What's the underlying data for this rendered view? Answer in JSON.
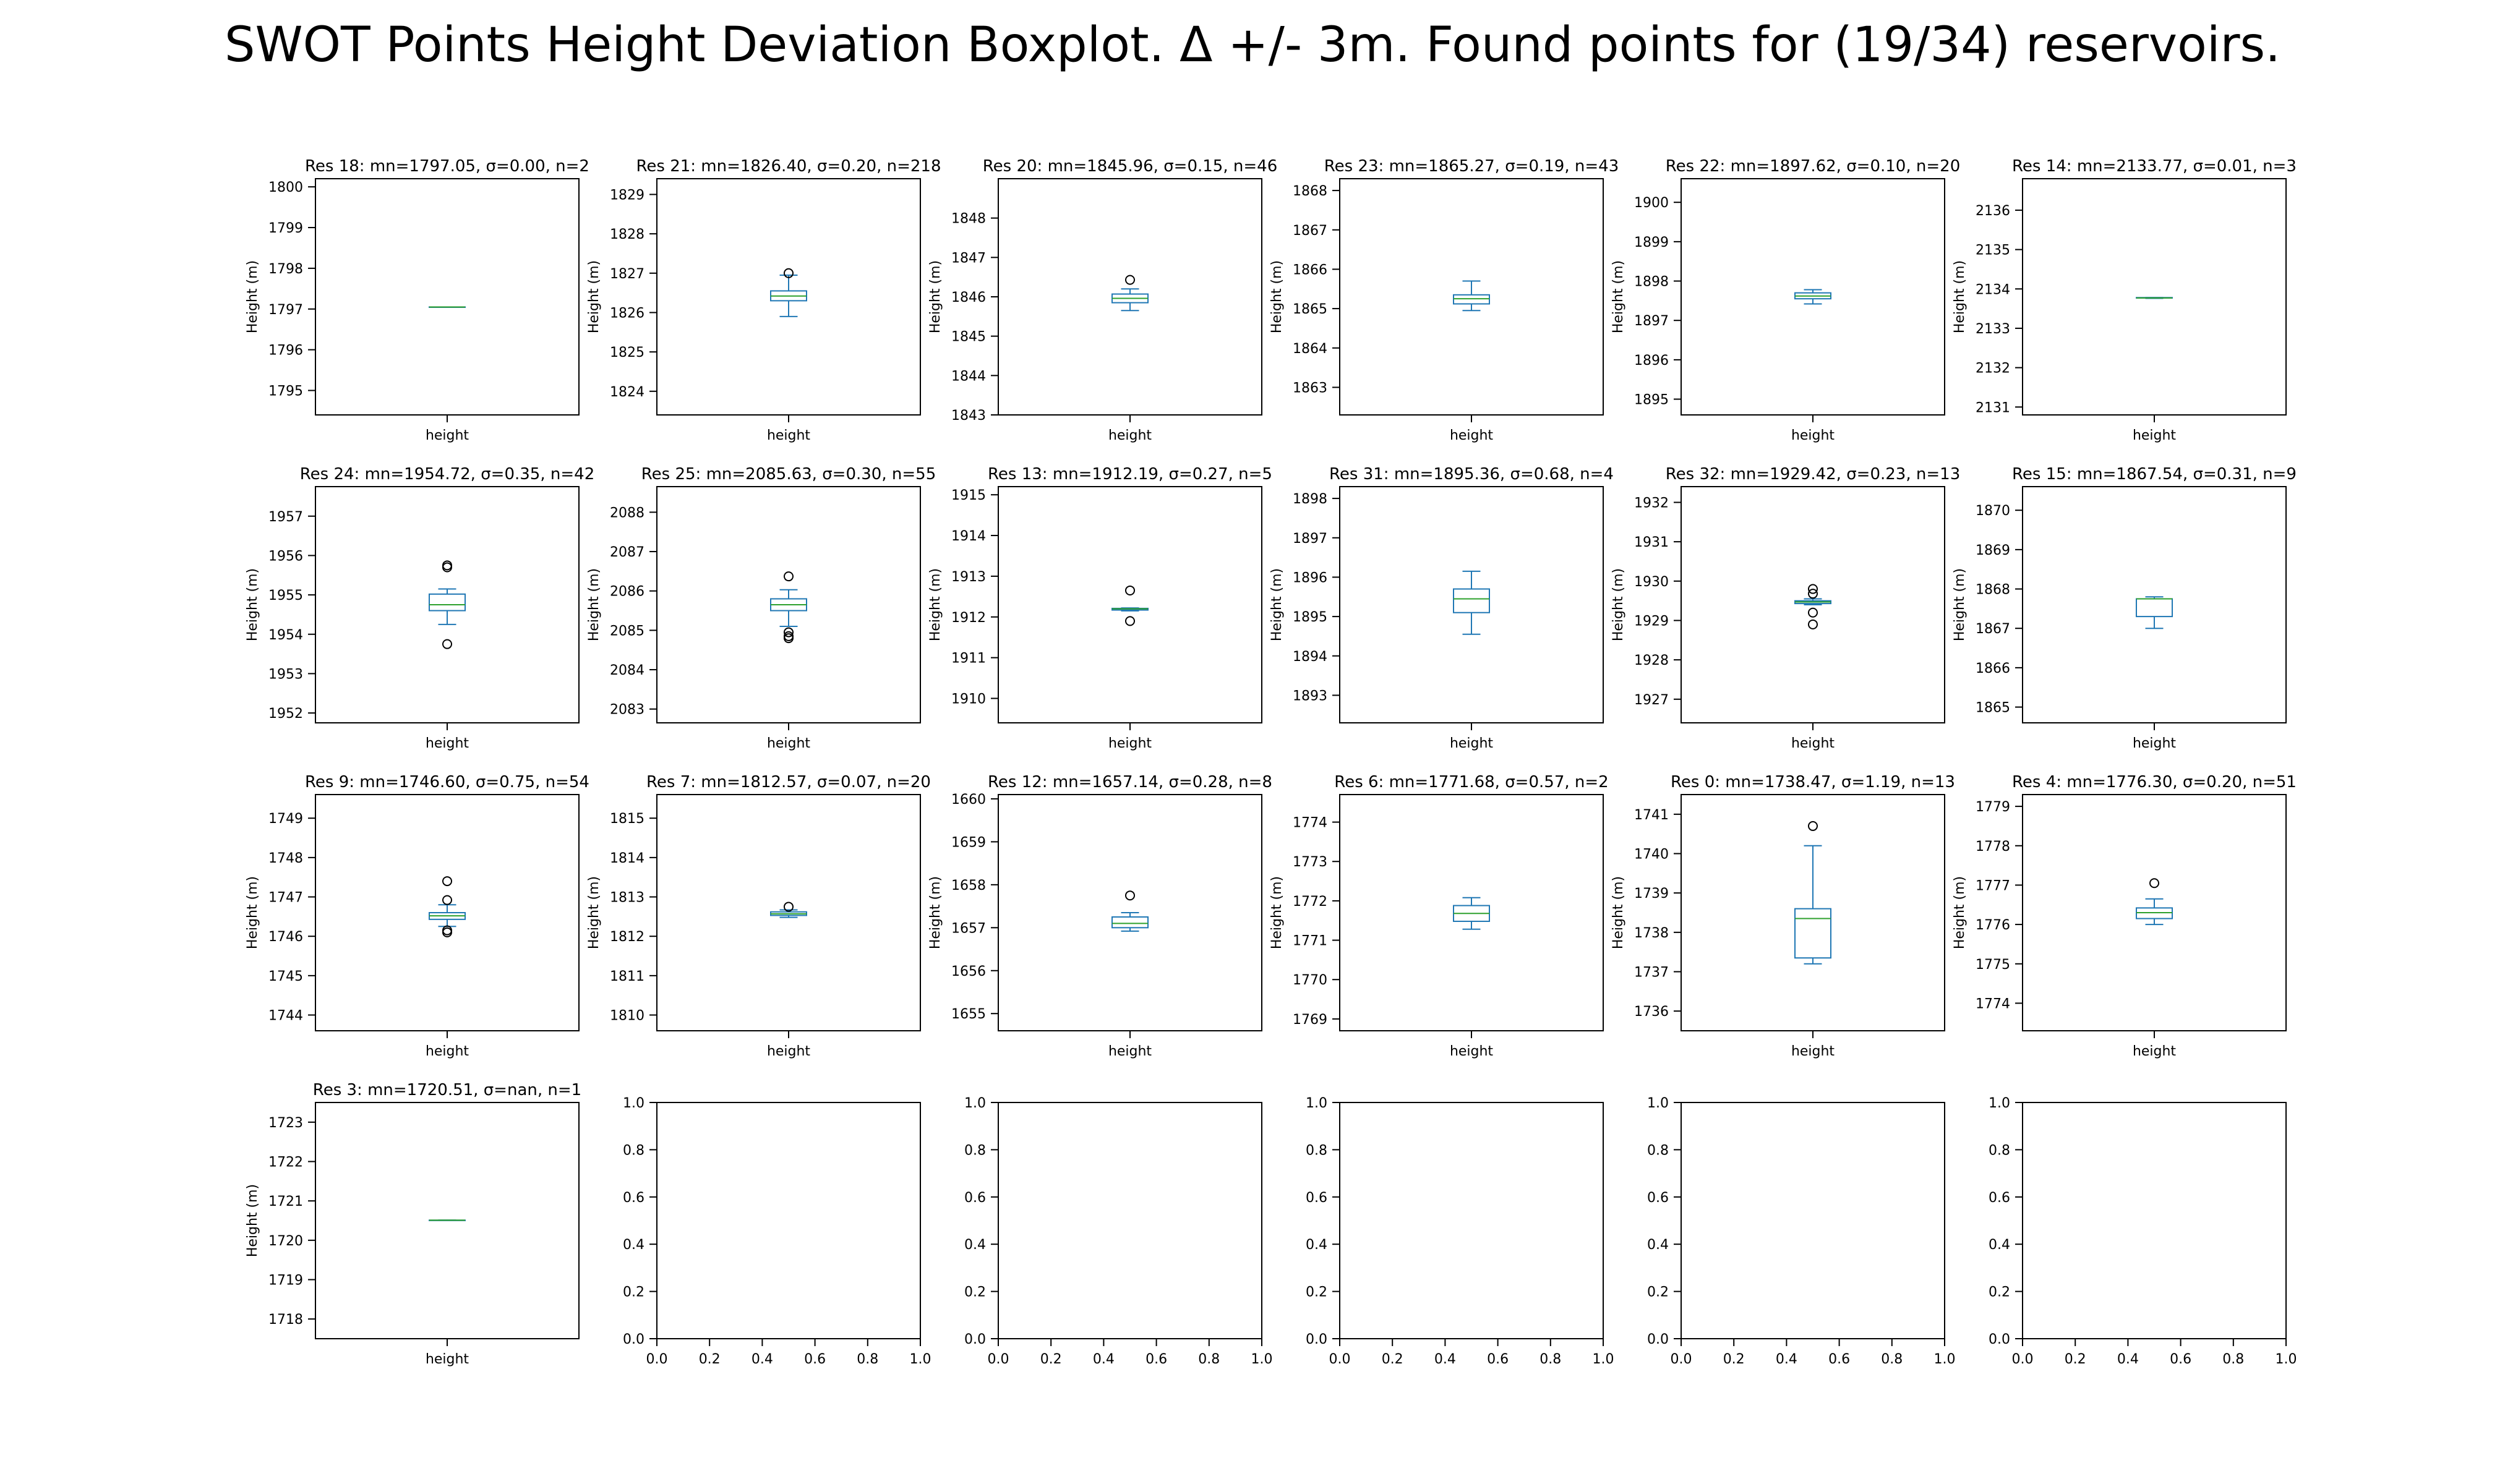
{
  "figure": {
    "title": "SWOT Points Height Deviation Boxplot. Δ +/- 3m. Found points for (19/34) reservoirs."
  },
  "colors": {
    "box": "#1f77b4",
    "median": "#2ca02c",
    "axes": "#000000"
  },
  "chart_data": [
    {
      "type": "box",
      "title": "Res 18: mn=1797.05, σ=0.00, n=2",
      "xlabel": "height",
      "ylabel": "Height (m)",
      "ylim": [
        1794.4,
        1800.2
      ],
      "yticks": [
        1795,
        1796,
        1797,
        1798,
        1799,
        1800
      ],
      "box": {
        "whislo": 1797.05,
        "q1": 1797.05,
        "med": 1797.05,
        "q3": 1797.05,
        "whishi": 1797.05,
        "fliers": []
      }
    },
    {
      "type": "box",
      "title": "Res 21: mn=1826.40, σ=0.20, n=218",
      "xlabel": "height",
      "ylabel": "Height (m)",
      "ylim": [
        1823.4,
        1829.4
      ],
      "yticks": [
        1824,
        1825,
        1826,
        1827,
        1828,
        1829
      ],
      "box": {
        "whislo": 1825.9,
        "q1": 1826.3,
        "med": 1826.42,
        "q3": 1826.55,
        "whishi": 1826.95,
        "fliers": [
          1827.0
        ]
      }
    },
    {
      "type": "box",
      "title": "Res 20: mn=1845.96, σ=0.15, n=46",
      "xlabel": "height",
      "ylabel": "Height (m)",
      "ylim": [
        1843.0,
        1849.0
      ],
      "yticks": [
        1843,
        1844,
        1845,
        1846,
        1847,
        1848
      ],
      "box": {
        "whislo": 1845.65,
        "q1": 1845.85,
        "med": 1845.96,
        "q3": 1846.07,
        "whishi": 1846.2,
        "fliers": [
          1846.43
        ]
      }
    },
    {
      "type": "box",
      "title": "Res 23: mn=1865.27, σ=0.19, n=43",
      "xlabel": "height",
      "ylabel": "Height (m)",
      "ylim": [
        1862.3,
        1868.3
      ],
      "yticks": [
        1863,
        1864,
        1865,
        1866,
        1867,
        1868
      ],
      "box": {
        "whislo": 1864.95,
        "q1": 1865.12,
        "med": 1865.25,
        "q3": 1865.35,
        "whishi": 1865.7,
        "fliers": []
      }
    },
    {
      "type": "box",
      "title": "Res 22: mn=1897.62, σ=0.10, n=20",
      "xlabel": "height",
      "ylabel": "Height (m)",
      "ylim": [
        1894.6,
        1900.6
      ],
      "yticks": [
        1895,
        1896,
        1897,
        1898,
        1899,
        1900
      ],
      "box": {
        "whislo": 1897.42,
        "q1": 1897.55,
        "med": 1897.62,
        "q3": 1897.7,
        "whishi": 1897.78,
        "fliers": []
      }
    },
    {
      "type": "box",
      "title": "Res 14: mn=2133.77, σ=0.01, n=3",
      "xlabel": "height",
      "ylabel": "Height (m)",
      "ylim": [
        2130.8,
        2136.8
      ],
      "yticks": [
        2131,
        2132,
        2133,
        2134,
        2135,
        2136
      ],
      "box": {
        "whislo": 2133.76,
        "q1": 2133.77,
        "med": 2133.77,
        "q3": 2133.78,
        "whishi": 2133.78,
        "fliers": []
      }
    },
    {
      "type": "box",
      "title": "Res 24: mn=1954.72, σ=0.35, n=42",
      "xlabel": "height",
      "ylabel": "Height (m)",
      "ylim": [
        1951.75,
        1957.75
      ],
      "yticks": [
        1952,
        1953,
        1954,
        1955,
        1956,
        1957
      ],
      "box": {
        "whislo": 1954.25,
        "q1": 1954.6,
        "med": 1954.75,
        "q3": 1955.02,
        "whishi": 1955.15,
        "fliers": [
          1955.7,
          1955.75,
          1953.75
        ]
      }
    },
    {
      "type": "box",
      "title": "Res 25: mn=2085.63, σ=0.30, n=55",
      "xlabel": "height",
      "ylabel": "Height (m)",
      "ylim": [
        2082.65,
        2088.65
      ],
      "yticks": [
        2083,
        2084,
        2085,
        2086,
        2087,
        2088
      ],
      "box": {
        "whislo": 2085.1,
        "q1": 2085.5,
        "med": 2085.65,
        "q3": 2085.8,
        "whishi": 2086.03,
        "fliers": [
          2086.37,
          2084.95,
          2084.85,
          2084.8
        ]
      }
    },
    {
      "type": "box",
      "title": "Res 13: mn=1912.19, σ=0.27, n=5",
      "xlabel": "height",
      "ylabel": "Height (m)",
      "ylim": [
        1909.4,
        1915.2
      ],
      "yticks": [
        1910,
        1911,
        1912,
        1913,
        1914,
        1915
      ],
      "box": {
        "whislo": 1912.15,
        "q1": 1912.17,
        "med": 1912.2,
        "q3": 1912.21,
        "whishi": 1912.22,
        "fliers": [
          1912.65,
          1911.9
        ]
      }
    },
    {
      "type": "box",
      "title": "Res 31: mn=1895.36, σ=0.68, n=4",
      "xlabel": "height",
      "ylabel": "Height (m)",
      "ylim": [
        1892.3,
        1898.3
      ],
      "yticks": [
        1893,
        1894,
        1895,
        1896,
        1897,
        1898
      ],
      "box": {
        "whislo": 1894.55,
        "q1": 1895.1,
        "med": 1895.45,
        "q3": 1895.7,
        "whishi": 1896.15,
        "fliers": []
      }
    },
    {
      "type": "box",
      "title": "Res 32: mn=1929.42, σ=0.23, n=13",
      "xlabel": "height",
      "ylabel": "Height (m)",
      "ylim": [
        1926.4,
        1932.4
      ],
      "yticks": [
        1927,
        1928,
        1929,
        1930,
        1931,
        1932
      ],
      "box": {
        "whislo": 1929.4,
        "q1": 1929.43,
        "med": 1929.47,
        "q3": 1929.5,
        "whishi": 1929.55,
        "fliers": [
          1929.8,
          1929.68,
          1929.2,
          1928.9
        ]
      }
    },
    {
      "type": "box",
      "title": "Res 15: mn=1867.54, σ=0.31, n=9",
      "xlabel": "height",
      "ylabel": "Height (m)",
      "ylim": [
        1864.6,
        1870.6
      ],
      "yticks": [
        1865,
        1866,
        1867,
        1868,
        1869,
        1870
      ],
      "box": {
        "whislo": 1867.0,
        "q1": 1867.3,
        "med": 1867.75,
        "q3": 1867.75,
        "whishi": 1867.8,
        "fliers": []
      }
    },
    {
      "type": "box",
      "title": "Res 9: mn=1746.60, σ=0.75, n=54",
      "xlabel": "height",
      "ylabel": "Height (m)",
      "ylim": [
        1743.6,
        1749.6
      ],
      "yticks": [
        1744,
        1745,
        1746,
        1747,
        1748,
        1749
      ],
      "box": {
        "whislo": 1746.25,
        "q1": 1746.43,
        "med": 1746.52,
        "q3": 1746.6,
        "whishi": 1746.8,
        "fliers": [
          1747.4,
          1746.92,
          1746.15,
          1746.1
        ]
      }
    },
    {
      "type": "box",
      "title": "Res 7: mn=1812.57, σ=0.07, n=20",
      "xlabel": "height",
      "ylabel": "Height (m)",
      "ylim": [
        1809.6,
        1815.6
      ],
      "yticks": [
        1810,
        1811,
        1812,
        1813,
        1814,
        1815
      ],
      "box": {
        "whislo": 1812.48,
        "q1": 1812.53,
        "med": 1812.57,
        "q3": 1812.62,
        "whishi": 1812.67,
        "fliers": [
          1812.75
        ]
      }
    },
    {
      "type": "box",
      "title": "Res 12: mn=1657.14, σ=0.28, n=8",
      "xlabel": "height",
      "ylabel": "Height (m)",
      "ylim": [
        1654.6,
        1660.1
      ],
      "yticks": [
        1655,
        1656,
        1657,
        1658,
        1659,
        1660
      ],
      "box": {
        "whislo": 1656.92,
        "q1": 1657.0,
        "med": 1657.1,
        "q3": 1657.25,
        "whishi": 1657.35,
        "fliers": [
          1657.75
        ]
      }
    },
    {
      "type": "box",
      "title": "Res 6: mn=1771.68, σ=0.57, n=2",
      "xlabel": "height",
      "ylabel": "Height (m)",
      "ylim": [
        1768.7,
        1774.7
      ],
      "yticks": [
        1769,
        1770,
        1771,
        1772,
        1773,
        1774
      ],
      "box": {
        "whislo": 1771.28,
        "q1": 1771.48,
        "med": 1771.68,
        "q3": 1771.88,
        "whishi": 1772.08,
        "fliers": []
      }
    },
    {
      "type": "box",
      "title": "Res 0: mn=1738.47, σ=1.19, n=13",
      "xlabel": "height",
      "ylabel": "Height (m)",
      "ylim": [
        1735.5,
        1741.5
      ],
      "yticks": [
        1736,
        1737,
        1738,
        1739,
        1740,
        1741
      ],
      "box": {
        "whislo": 1737.2,
        "q1": 1737.35,
        "med": 1738.35,
        "q3": 1738.6,
        "whishi": 1740.2,
        "fliers": [
          1740.7
        ]
      }
    },
    {
      "type": "box",
      "title": "Res 4: mn=1776.30, σ=0.20, n=51",
      "xlabel": "height",
      "ylabel": "Height (m)",
      "ylim": [
        1773.3,
        1779.3
      ],
      "yticks": [
        1774,
        1775,
        1776,
        1777,
        1778,
        1779
      ],
      "box": {
        "whislo": 1776.0,
        "q1": 1776.15,
        "med": 1776.3,
        "q3": 1776.42,
        "whishi": 1776.65,
        "fliers": [
          1777.05
        ]
      }
    },
    {
      "type": "box",
      "title": "Res 3: mn=1720.51, σ=nan, n=1",
      "xlabel": "height",
      "ylabel": "Height (m)",
      "ylim": [
        1717.5,
        1723.5
      ],
      "yticks": [
        1718,
        1719,
        1720,
        1721,
        1722,
        1723
      ],
      "box": {
        "whislo": 1720.51,
        "q1": 1720.51,
        "med": 1720.51,
        "q3": 1720.51,
        "whishi": 1720.51,
        "fliers": []
      }
    },
    {
      "type": "empty",
      "title": "",
      "xlabel": "",
      "ylabel": "",
      "xticks": [
        "0.0",
        "0.2",
        "0.4",
        "0.6",
        "0.8",
        "1.0"
      ],
      "yticks": [
        "0.0",
        "0.2",
        "0.4",
        "0.6",
        "0.8",
        "1.0"
      ]
    },
    {
      "type": "empty",
      "title": "",
      "xlabel": "",
      "ylabel": "",
      "xticks": [
        "0.0",
        "0.2",
        "0.4",
        "0.6",
        "0.8",
        "1.0"
      ],
      "yticks": [
        "0.0",
        "0.2",
        "0.4",
        "0.6",
        "0.8",
        "1.0"
      ]
    },
    {
      "type": "empty",
      "title": "",
      "xlabel": "",
      "ylabel": "",
      "xticks": [
        "0.0",
        "0.2",
        "0.4",
        "0.6",
        "0.8",
        "1.0"
      ],
      "yticks": [
        "0.0",
        "0.2",
        "0.4",
        "0.6",
        "0.8",
        "1.0"
      ]
    },
    {
      "type": "empty",
      "title": "",
      "xlabel": "",
      "ylabel": "",
      "xticks": [
        "0.0",
        "0.2",
        "0.4",
        "0.6",
        "0.8",
        "1.0"
      ],
      "yticks": [
        "0.0",
        "0.2",
        "0.4",
        "0.6",
        "0.8",
        "1.0"
      ]
    },
    {
      "type": "empty",
      "title": "",
      "xlabel": "",
      "ylabel": "",
      "xticks": [
        "0.0",
        "0.2",
        "0.4",
        "0.6",
        "0.8",
        "1.0"
      ],
      "yticks": [
        "0.0",
        "0.2",
        "0.4",
        "0.6",
        "0.8",
        "1.0"
      ]
    }
  ]
}
